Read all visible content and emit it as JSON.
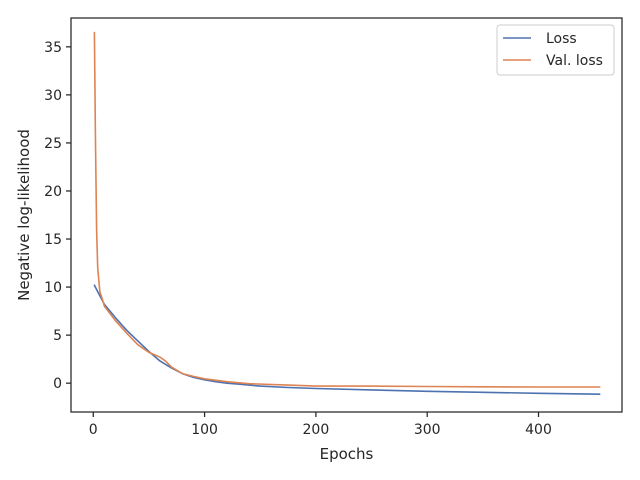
{
  "chart_data": {
    "type": "line",
    "title": "",
    "xlabel": "Epochs",
    "ylabel": "Negative log-likelihood",
    "xlim": [
      -20,
      475
    ],
    "ylim": [
      -3,
      38
    ],
    "xticks": [
      0,
      100,
      200,
      300,
      400
    ],
    "yticks": [
      0,
      5,
      10,
      15,
      20,
      25,
      30,
      35
    ],
    "xtick_labels": [
      "0",
      "100",
      "200",
      "300",
      "400"
    ],
    "ytick_labels": [
      "0",
      "5",
      "10",
      "15",
      "20",
      "25",
      "30",
      "35"
    ],
    "grid": false,
    "legend_position": "top-right",
    "series": [
      {
        "name": "Loss",
        "color": "#4c72b0",
        "x": [
          1,
          5,
          10,
          20,
          30,
          40,
          50,
          60,
          70,
          80,
          90,
          100,
          110,
          120,
          130,
          140,
          150,
          175,
          200,
          250,
          300,
          350,
          400,
          455
        ],
        "y": [
          10.2,
          9.3,
          8.2,
          6.8,
          5.5,
          4.4,
          3.3,
          2.3,
          1.6,
          1.0,
          0.6,
          0.35,
          0.15,
          0.0,
          -0.1,
          -0.2,
          -0.3,
          -0.45,
          -0.55,
          -0.7,
          -0.85,
          -0.95,
          -1.05,
          -1.15
        ]
      },
      {
        "name": "Val. loss",
        "color": "#dd8452",
        "x": [
          1,
          2,
          3,
          4,
          6,
          8,
          10,
          20,
          30,
          40,
          50,
          60,
          65,
          70,
          80,
          90,
          100,
          120,
          140,
          175,
          200,
          250,
          300,
          350,
          400,
          455
        ],
        "y": [
          36.5,
          25.0,
          16.0,
          12.0,
          9.5,
          8.8,
          8.0,
          6.5,
          5.2,
          4.0,
          3.2,
          2.7,
          2.3,
          1.7,
          1.0,
          0.7,
          0.45,
          0.15,
          -0.05,
          -0.2,
          -0.3,
          -0.3,
          -0.35,
          -0.38,
          -0.4,
          -0.4
        ]
      }
    ]
  }
}
